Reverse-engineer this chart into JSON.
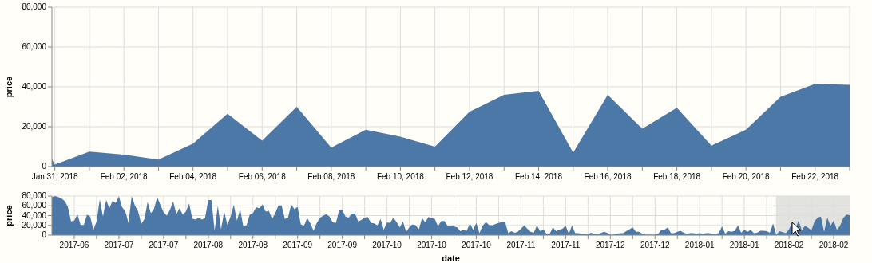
{
  "chart_data": [
    {
      "type": "area",
      "ylabel": "price",
      "color": "#4c78a8",
      "grid": true,
      "xlim": [
        "2018-01-30T22:00",
        "2018-02-23"
      ],
      "ylim": [
        0,
        80000
      ],
      "yticks": [
        0,
        {
          "value": 20000,
          "label": "20,000"
        },
        {
          "value": 40000,
          "label": "40,000"
        },
        {
          "value": 60000,
          "label": "60,000"
        },
        {
          "value": 80000,
          "label": "80,000"
        }
      ],
      "xticks": [
        {
          "value": "2018-01-31",
          "label": "Jan 31, 2018"
        },
        {
          "value": "2018-02-01",
          "label": null
        },
        {
          "value": "2018-02-02",
          "label": "Feb 02, 2018"
        },
        {
          "value": "2018-02-03",
          "label": null
        },
        {
          "value": "2018-02-04",
          "label": "Feb 04, 2018"
        },
        {
          "value": "2018-02-05",
          "label": null
        },
        {
          "value": "2018-02-06",
          "label": "Feb 06, 2018"
        },
        {
          "value": "2018-02-07",
          "label": null
        },
        {
          "value": "2018-02-08",
          "label": "Feb 08, 2018"
        },
        {
          "value": "2018-02-09",
          "label": null
        },
        {
          "value": "2018-02-10",
          "label": "Feb 10, 2018"
        },
        {
          "value": "2018-02-11",
          "label": null
        },
        {
          "value": "2018-02-12",
          "label": "Feb 12, 2018"
        },
        {
          "value": "2018-02-13",
          "label": null
        },
        {
          "value": "2018-02-14",
          "label": "Feb 14, 2018"
        },
        {
          "value": "2018-02-15",
          "label": null
        },
        {
          "value": "2018-02-16",
          "label": "Feb 16, 2018"
        },
        {
          "value": "2018-02-17",
          "label": null
        },
        {
          "value": "2018-02-18",
          "label": "Feb 18, 2018"
        },
        {
          "value": "2018-02-19",
          "label": null
        },
        {
          "value": "2018-02-20",
          "label": "Feb 20, 2018"
        },
        {
          "value": "2018-02-21",
          "label": null
        },
        {
          "value": "2018-02-22",
          "label": "Feb 22, 2018"
        },
        {
          "value": "2018-02-23",
          "label": null
        }
      ],
      "x": [
        "2018-01-30T22:00",
        "2018-01-31",
        "2018-02-01",
        "2018-02-02",
        "2018-02-03",
        "2018-02-04",
        "2018-02-05",
        "2018-02-06",
        "2018-02-07",
        "2018-02-08",
        "2018-02-09",
        "2018-02-10",
        "2018-02-11",
        "2018-02-12",
        "2018-02-13",
        "2018-02-14",
        "2018-02-15",
        "2018-02-16",
        "2018-02-17",
        "2018-02-18",
        "2018-02-19",
        "2018-02-20",
        "2018-02-21",
        "2018-02-22",
        "2018-02-23"
      ],
      "values": [
        3700,
        1000,
        7500,
        6000,
        3500,
        11500,
        26500,
        13000,
        30000,
        9500,
        18500,
        15000,
        10000,
        27500,
        36000,
        38000,
        7000,
        36000,
        19000,
        29500,
        10500,
        18500,
        35000,
        41500,
        41000
      ]
    },
    {
      "type": "area",
      "ylabel": "price",
      "xlabel": "date",
      "color": "#4c78a8",
      "grid": true,
      "xlim": [
        "2017-06-18",
        "2018-02-23"
      ],
      "ylim": [
        0,
        80000
      ],
      "yticks": [
        0,
        {
          "value": 20000,
          "label": "20,000"
        },
        {
          "value": 40000,
          "label": "40,000"
        },
        {
          "value": 60000,
          "label": "60,000"
        },
        {
          "value": 80000,
          "label": "80,000"
        }
      ],
      "bands": [
        {
          "axis": "x",
          "from": "2018-01-30T22:00",
          "to": "2018-02-23",
          "color": "#e2e2de"
        }
      ],
      "xticks": [
        {
          "value": "2017-06-25",
          "label": "2017-06"
        },
        {
          "value": "2017-07-02",
          "label": null
        },
        {
          "value": "2017-07-09",
          "label": "2017-07"
        },
        {
          "value": "2017-07-16",
          "label": null
        },
        {
          "value": "2017-07-23",
          "label": "2017-07"
        },
        {
          "value": "2017-07-30",
          "label": null
        },
        {
          "value": "2017-08-06",
          "label": "2017-08"
        },
        {
          "value": "2017-08-13",
          "label": null
        },
        {
          "value": "2017-08-20",
          "label": "2017-08"
        },
        {
          "value": "2017-08-27",
          "label": null
        },
        {
          "value": "2017-09-03",
          "label": "2017-09"
        },
        {
          "value": "2017-09-10",
          "label": null
        },
        {
          "value": "2017-09-17",
          "label": "2017-09"
        },
        {
          "value": "2017-09-24",
          "label": null
        },
        {
          "value": "2017-10-01",
          "label": "2017-10"
        },
        {
          "value": "2017-10-08",
          "label": null
        },
        {
          "value": "2017-10-15",
          "label": "2017-10"
        },
        {
          "value": "2017-10-22",
          "label": null
        },
        {
          "value": "2017-10-29",
          "label": "2017-10"
        },
        {
          "value": "2017-11-05",
          "label": null
        },
        {
          "value": "2017-11-12",
          "label": "2017-11"
        },
        {
          "value": "2017-11-19",
          "label": null
        },
        {
          "value": "2017-11-26",
          "label": "2017-11"
        },
        {
          "value": "2017-12-03",
          "label": null
        },
        {
          "value": "2017-12-10",
          "label": "2017-12"
        },
        {
          "value": "2017-12-17",
          "label": null
        },
        {
          "value": "2017-12-24",
          "label": "2017-12"
        },
        {
          "value": "2017-12-31",
          "label": null
        },
        {
          "value": "2018-01-07",
          "label": "2018-01"
        },
        {
          "value": "2018-01-14",
          "label": null
        },
        {
          "value": "2018-01-21",
          "label": "2018-01"
        },
        {
          "value": "2018-01-28",
          "label": null
        },
        {
          "value": "2018-02-04",
          "label": "2018-02"
        },
        {
          "value": "2018-02-11",
          "label": null
        },
        {
          "value": "2018-02-18",
          "label": "2018-02"
        }
      ],
      "x": [
        "2017-06-18",
        "2017-06-19",
        "2017-06-20",
        "2017-06-21",
        "2017-06-22",
        "2017-06-23",
        "2017-06-24",
        "2017-06-25",
        "2017-06-26",
        "2017-06-27",
        "2017-06-28",
        "2017-06-29",
        "2017-06-30",
        "2017-07-01",
        "2017-07-02",
        "2017-07-03",
        "2017-07-04",
        "2017-07-05",
        "2017-07-06",
        "2017-07-07",
        "2017-07-08",
        "2017-07-09",
        "2017-07-10",
        "2017-07-11",
        "2017-07-12",
        "2017-07-13",
        "2017-07-14",
        "2017-07-15",
        "2017-07-16",
        "2017-07-17",
        "2017-07-18",
        "2017-07-19",
        "2017-07-20",
        "2017-07-21",
        "2017-07-22",
        "2017-07-23",
        "2017-07-24",
        "2017-07-25",
        "2017-07-26",
        "2017-07-27",
        "2017-07-28",
        "2017-07-29",
        "2017-07-30",
        "2017-07-31",
        "2017-08-01",
        "2017-08-02",
        "2017-08-03",
        "2017-08-04",
        "2017-08-05",
        "2017-08-06",
        "2017-08-07",
        "2017-08-08",
        "2017-08-09",
        "2017-08-10",
        "2017-08-11",
        "2017-08-12",
        "2017-08-13",
        "2017-08-14",
        "2017-08-15",
        "2017-08-16",
        "2017-08-17",
        "2017-08-18",
        "2017-08-19",
        "2017-08-20",
        "2017-08-21",
        "2017-08-22",
        "2017-08-23",
        "2017-08-24",
        "2017-08-25",
        "2017-08-26",
        "2017-08-27",
        "2017-08-28",
        "2017-08-29",
        "2017-08-30",
        "2017-08-31",
        "2017-09-01",
        "2017-09-02",
        "2017-09-03",
        "2017-09-04",
        "2017-09-05",
        "2017-09-06",
        "2017-09-07",
        "2017-09-08",
        "2017-09-09",
        "2017-09-10",
        "2017-09-11",
        "2017-09-12",
        "2017-09-13",
        "2017-09-14",
        "2017-09-15",
        "2017-09-16",
        "2017-09-17",
        "2017-09-18",
        "2017-09-19",
        "2017-09-20",
        "2017-09-21",
        "2017-09-22",
        "2017-09-23",
        "2017-09-24",
        "2017-09-25",
        "2017-09-26",
        "2017-09-27",
        "2017-09-28",
        "2017-09-29",
        "2017-09-30",
        "2017-10-01",
        "2017-10-02",
        "2017-10-03",
        "2017-10-04",
        "2017-10-05",
        "2017-10-06",
        "2017-10-07",
        "2017-10-08",
        "2017-10-09",
        "2017-10-10",
        "2017-10-11",
        "2017-10-12",
        "2017-10-13",
        "2017-10-14",
        "2017-10-15",
        "2017-10-16",
        "2017-10-17",
        "2017-10-18",
        "2017-10-19",
        "2017-10-20",
        "2017-10-21",
        "2017-10-22",
        "2017-10-23",
        "2017-10-24",
        "2017-10-25",
        "2017-10-26",
        "2017-10-27",
        "2017-10-28",
        "2017-10-29",
        "2017-10-30",
        "2017-10-31",
        "2017-11-01",
        "2017-11-02",
        "2017-11-03",
        "2017-11-04",
        "2017-11-05",
        "2017-11-06",
        "2017-11-07",
        "2017-11-08",
        "2017-11-09",
        "2017-11-10",
        "2017-11-11",
        "2017-11-12",
        "2017-11-13",
        "2017-11-14",
        "2017-11-15",
        "2017-11-16",
        "2017-11-17",
        "2017-11-18",
        "2017-11-19",
        "2017-11-20",
        "2017-11-21",
        "2017-11-22",
        "2017-11-23",
        "2017-11-24",
        "2017-11-25",
        "2017-11-26",
        "2017-11-27",
        "2017-11-28",
        "2017-11-29",
        "2017-11-30",
        "2017-12-01",
        "2017-12-02",
        "2017-12-03",
        "2017-12-04",
        "2017-12-05",
        "2017-12-06",
        "2017-12-07",
        "2017-12-08",
        "2017-12-09",
        "2017-12-10",
        "2017-12-11",
        "2017-12-12",
        "2017-12-13",
        "2017-12-14",
        "2017-12-15",
        "2017-12-16",
        "2017-12-17",
        "2017-12-18",
        "2017-12-19",
        "2017-12-20",
        "2017-12-21",
        "2017-12-22",
        "2017-12-23",
        "2017-12-24",
        "2017-12-25",
        "2017-12-26",
        "2017-12-27",
        "2017-12-28",
        "2017-12-29",
        "2017-12-30",
        "2017-12-31",
        "2018-01-01",
        "2018-01-02",
        "2018-01-03",
        "2018-01-04",
        "2018-01-05",
        "2018-01-06",
        "2018-01-07",
        "2018-01-08",
        "2018-01-09",
        "2018-01-10",
        "2018-01-11",
        "2018-01-12",
        "2018-01-13",
        "2018-01-14",
        "2018-01-15",
        "2018-01-16",
        "2018-01-17",
        "2018-01-18",
        "2018-01-19",
        "2018-01-20",
        "2018-01-21",
        "2018-01-22",
        "2018-01-23",
        "2018-01-24",
        "2018-01-25",
        "2018-01-26",
        "2018-01-27",
        "2018-01-28",
        "2018-01-29",
        "2018-01-30",
        "2018-01-31",
        "2018-02-01",
        "2018-02-02",
        "2018-02-03",
        "2018-02-04",
        "2018-02-05",
        "2018-02-06",
        "2018-02-07",
        "2018-02-08",
        "2018-02-09",
        "2018-02-10",
        "2018-02-11",
        "2018-02-12",
        "2018-02-13",
        "2018-02-14",
        "2018-02-15",
        "2018-02-16",
        "2018-02-17",
        "2018-02-18",
        "2018-02-19",
        "2018-02-20",
        "2018-02-21",
        "2018-02-22",
        "2018-02-23"
      ],
      "values": [
        78000,
        80000,
        78000,
        75000,
        70000,
        58000,
        28000,
        30000,
        43000,
        21000,
        21000,
        42000,
        38000,
        11000,
        28000,
        73000,
        38000,
        72000,
        55000,
        70000,
        66000,
        79000,
        57000,
        49000,
        25000,
        80000,
        61000,
        49000,
        23000,
        33000,
        68000,
        45000,
        54000,
        78000,
        62000,
        47000,
        40000,
        52000,
        69000,
        43000,
        55000,
        42000,
        48000,
        65000,
        34000,
        32000,
        36000,
        32000,
        35000,
        72000,
        72000,
        9000,
        60000,
        12000,
        48000,
        21000,
        38000,
        62000,
        30000,
        53000,
        17000,
        20000,
        42000,
        45000,
        57000,
        55000,
        63000,
        48000,
        50000,
        33000,
        45000,
        61000,
        61000,
        33000,
        36000,
        63000,
        53000,
        58000,
        22000,
        19000,
        35000,
        24000,
        9000,
        25000,
        35000,
        40000,
        43000,
        38000,
        26000,
        25000,
        51000,
        52000,
        38000,
        36000,
        44000,
        44000,
        28000,
        31000,
        36000,
        37000,
        25000,
        24000,
        20000,
        33000,
        11000,
        26000,
        25000,
        36000,
        27000,
        16000,
        28000,
        7000,
        16000,
        22000,
        20000,
        12000,
        35000,
        26000,
        37000,
        35000,
        33000,
        18000,
        29000,
        29000,
        19000,
        18000,
        18000,
        16000,
        8000,
        11000,
        9000,
        24000,
        11000,
        25000,
        4000,
        19000,
        27000,
        21000,
        20000,
        23000,
        25000,
        27000,
        28000,
        4000,
        8000,
        5000,
        7000,
        13000,
        20000,
        13000,
        7000,
        5000,
        20000,
        8000,
        12000,
        3000,
        3000,
        16000,
        8000,
        11000,
        13000,
        19000,
        3000,
        20000,
        4000,
        4000,
        3000,
        3000,
        2000,
        5000,
        2000,
        2000,
        4000,
        7000,
        5000,
        1000,
        1000,
        3000,
        4000,
        4000,
        8000,
        12000,
        16000,
        7000,
        7000,
        3000,
        1000,
        1000,
        1000,
        1000,
        3000,
        11000,
        11000,
        16000,
        4000,
        4000,
        7000,
        9000,
        5000,
        3000,
        4000,
        4000,
        3000,
        4000,
        3000,
        4000,
        4000,
        3000,
        3000,
        4000,
        18000,
        3000,
        8000,
        7000,
        9000,
        20000,
        5000,
        11000,
        7000,
        11000,
        4000,
        5000,
        9000,
        9000,
        8000,
        5000,
        24000,
        1000,
        8000,
        6000,
        4000,
        12000,
        27000,
        13000,
        30000,
        10000,
        19000,
        15000,
        10000,
        28000,
        36000,
        38000,
        7000,
        36000,
        19000,
        30000,
        11000,
        19000,
        35000,
        42000,
        41000
      ]
    }
  ]
}
